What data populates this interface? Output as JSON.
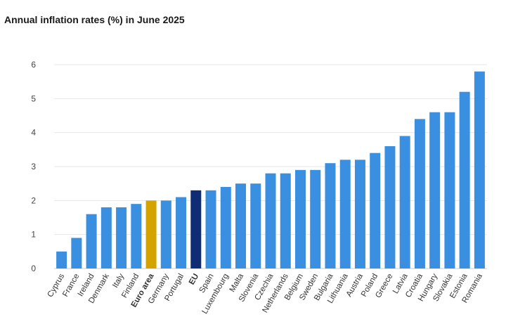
{
  "chart_data": {
    "type": "bar",
    "title": "Annual inflation rates (%) in June 2025",
    "xlabel": "",
    "ylabel": "",
    "ylim": [
      0,
      6
    ],
    "yticks": [
      0,
      1,
      2,
      3,
      4,
      5,
      6
    ],
    "grid": true,
    "legend": "none",
    "colors": {
      "default": "#3a8fe0",
      "euro_area": "#d4a300",
      "eu": "#0f2d75"
    },
    "highlight": {
      "Euro area": "euro_area",
      "EU": "eu"
    },
    "bold_categories": [
      "Euro area",
      "EU"
    ],
    "categories": [
      "Cyprus",
      "France",
      "Ireland",
      "Denmark",
      "Italy",
      "Finland",
      "Euro area",
      "Germany",
      "Portugal",
      "EU",
      "Spain",
      "Luxembourg",
      "Malta",
      "Slovenia",
      "Czechia",
      "Netherlands",
      "Belgium",
      "Sweden",
      "Bulgaria",
      "Lithuania",
      "Austria",
      "Poland",
      "Greece",
      "Latvia",
      "Croatia",
      "Hungary",
      "Slovakia",
      "Estonia",
      "Romania"
    ],
    "values": [
      0.5,
      0.9,
      1.6,
      1.8,
      1.8,
      1.9,
      2.0,
      2.0,
      2.1,
      2.3,
      2.3,
      2.4,
      2.5,
      2.5,
      2.8,
      2.8,
      2.9,
      2.9,
      3.1,
      3.2,
      3.2,
      3.4,
      3.6,
      3.9,
      4.4,
      4.6,
      4.6,
      5.2,
      5.8
    ]
  }
}
